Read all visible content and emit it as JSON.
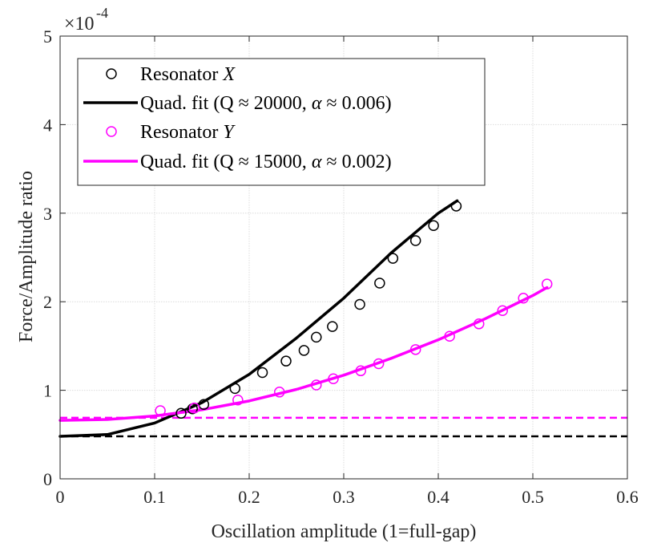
{
  "chart_data": {
    "type": "scatter",
    "title": "",
    "xlabel": "Oscillation amplitude (1=full-gap)",
    "ylabel": "Force/Amplitude ratio",
    "xlim": [
      0,
      0.6
    ],
    "ylim": [
      0,
      5
    ],
    "y_exponent_label": "×10",
    "y_exponent_power": "-4",
    "x_ticks": [
      "0",
      "0.1",
      "0.2",
      "0.3",
      "0.4",
      "0.5",
      "0.6"
    ],
    "y_ticks": [
      "0",
      "1",
      "2",
      "3",
      "4",
      "5"
    ],
    "grid": true,
    "legend_position": "top-left",
    "series": [
      {
        "name": "Resonator X",
        "legend_prefix": "Resonator ",
        "legend_var": "X",
        "kind": "markers",
        "color": "#000000",
        "x": [
          0.128,
          0.14,
          0.152,
          0.185,
          0.214,
          0.239,
          0.258,
          0.271,
          0.288,
          0.317,
          0.338,
          0.352,
          0.376,
          0.395,
          0.419
        ],
        "y": [
          0.74,
          0.79,
          0.84,
          1.02,
          1.2,
          1.33,
          1.45,
          1.6,
          1.72,
          1.97,
          2.21,
          2.49,
          2.69,
          2.86,
          3.08
        ]
      },
      {
        "name": "Quad. fit (Q ≈ 20000, α ≈ 0.006)",
        "legend_text": "Quad. fit (Q ≈ 20000, ",
        "legend_greek": "α",
        "legend_suffix": " ≈ 0.006)",
        "kind": "line",
        "color": "#000000",
        "x": [
          0,
          0.05,
          0.1,
          0.15,
          0.2,
          0.25,
          0.3,
          0.35,
          0.4,
          0.42
        ],
        "y": [
          0.48,
          0.5,
          0.63,
          0.86,
          1.18,
          1.59,
          2.04,
          2.55,
          3.0,
          3.14
        ]
      },
      {
        "name": "Resonator Y",
        "legend_prefix": "Resonator ",
        "legend_var": "Y",
        "kind": "markers",
        "color": "#FF00FF",
        "x": [
          0.106,
          0.142,
          0.188,
          0.232,
          0.271,
          0.289,
          0.318,
          0.337,
          0.376,
          0.412,
          0.443,
          0.468,
          0.49,
          0.515
        ],
        "y": [
          0.77,
          0.8,
          0.89,
          0.98,
          1.06,
          1.13,
          1.22,
          1.3,
          1.46,
          1.61,
          1.75,
          1.9,
          2.04,
          2.2
        ]
      },
      {
        "name": "Quad. fit (Q ≈ 15000, α ≈ 0.002)",
        "legend_text": "Quad. fit (Q ≈ 15000, ",
        "legend_greek": "α",
        "legend_suffix": " ≈ 0.002)",
        "kind": "line",
        "color": "#FF00FF",
        "x": [
          0,
          0.05,
          0.1,
          0.15,
          0.2,
          0.25,
          0.3,
          0.35,
          0.4,
          0.45,
          0.5,
          0.515
        ],
        "y": [
          0.66,
          0.67,
          0.71,
          0.78,
          0.88,
          1.01,
          1.17,
          1.36,
          1.57,
          1.81,
          2.07,
          2.16
        ]
      }
    ],
    "reference_lines": [
      {
        "y": 0.48,
        "color": "#000000",
        "style": "dashed"
      },
      {
        "y": 0.69,
        "color": "#FF00FF",
        "style": "dashed"
      }
    ]
  }
}
